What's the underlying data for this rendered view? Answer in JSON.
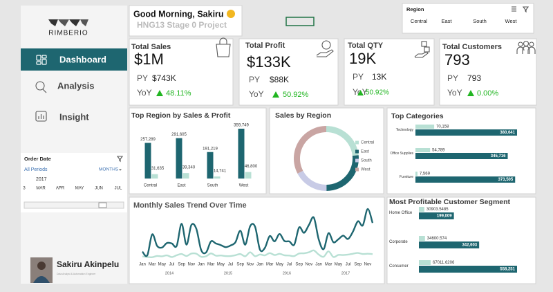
{
  "sidebar": {
    "logo": "RIMBERIO",
    "menu": [
      "Dashboard",
      "Analysis",
      "Insight"
    ],
    "order_date": {
      "title": "Order Date",
      "period": "All Periods",
      "level": "MONTHS",
      "year": "2017",
      "months": [
        "3",
        "MAR",
        "APR",
        "MAY",
        "JUN",
        "JUL"
      ]
    },
    "profile": {
      "name": "Sakiru Akinpelu",
      "role": "Data Analyst & Automation Engineer"
    }
  },
  "header": {
    "greeting": "Good Morning, Sakiru",
    "subtitle": "HNG13 Stage 0 Project"
  },
  "region_slicer": {
    "title": "Region",
    "items": [
      "Central",
      "East",
      "South",
      "West"
    ]
  },
  "kpis": [
    {
      "title": "Total Sales",
      "value": "$1M",
      "py_label": "PY",
      "py": "$743K",
      "yoy_label": "YoY",
      "yoy": "48.11%"
    },
    {
      "title": "Total Profit",
      "value": "$133K",
      "py_label": "PY",
      "py": "$88K",
      "yoy_label": "YoY",
      "yoy": "50.92%"
    },
    {
      "title": "Total QTY",
      "value": "19K",
      "py_label": "PY",
      "py": "13K",
      "yoy_label": "YoY",
      "yoy": "50.92%"
    },
    {
      "title": "Total Customers",
      "value": "793",
      "py_label": "PY",
      "py": "793",
      "yoy_label": "YoY",
      "yoy": "0.00%"
    }
  ],
  "chart_data": [
    {
      "type": "bar",
      "title": "Top Region by Sales & Profit",
      "categories": [
        "Central",
        "East",
        "South",
        "West"
      ],
      "series": [
        {
          "color": "#1e6670",
          "values": [
            257289,
            291605,
            191219,
            359749
          ],
          "value_labels": [
            "257,289",
            "291,605",
            "191,219",
            "359,749"
          ]
        },
        {
          "color": "#b8e0d4",
          "values": [
            31635,
            39340,
            14741,
            46800
          ],
          "value_labels": [
            "31,635",
            "39,340",
            "14,741",
            "46,800"
          ]
        }
      ]
    },
    {
      "type": "donut",
      "title": "Sales by Region",
      "categories": [
        "Central",
        "East",
        "South",
        "West"
      ],
      "values": [
        257289,
        291605,
        191219,
        359749
      ],
      "colors": [
        "#b8e0d4",
        "#1e6670",
        "#c8cbe6",
        "#c9a5a3"
      ]
    },
    {
      "type": "hbar",
      "title": "Top Categories",
      "categories": [
        "Technology",
        "Office Supplies",
        "Furniture"
      ],
      "series": [
        {
          "color": "#b8e0d4",
          "values": [
            70158,
            54789,
            7569
          ],
          "value_labels": [
            "70,158",
            "54,789",
            "7,569"
          ]
        },
        {
          "color": "#1e6670",
          "values": [
            380641,
            345716,
            373505
          ],
          "value_labels": [
            "380,641",
            "345,716",
            "373,505"
          ]
        }
      ]
    },
    {
      "type": "line",
      "title": "Monthly Sales Trend Over Time",
      "categories": [
        "Jan",
        null,
        "Mar",
        null,
        "May",
        null,
        "Jul",
        null,
        "Sep",
        null,
        "Nov",
        null,
        "Jan",
        null,
        "Mar",
        null,
        "May",
        null,
        "Jul",
        null,
        "Sep",
        null,
        "Nov",
        null,
        "Jan",
        null,
        "Mar",
        null,
        "May",
        null,
        "Jul",
        null,
        "Sep",
        null,
        "Nov",
        null,
        "Jan",
        null,
        "Mar",
        null,
        "May",
        null,
        "Jul",
        null,
        "Sep",
        null,
        "Nov",
        null
      ],
      "years": [
        "2014",
        "2015",
        "2016",
        "2017"
      ],
      "series": [
        {
          "color": "#1e6670",
          "values": [
            14000,
            5000,
            56000,
            28000,
            24000,
            35000,
            34000,
            28000,
            82000,
            31000,
            79000,
            70000,
            18000,
            12000,
            39000,
            34000,
            30000,
            25000,
            29000,
            37000,
            65000,
            31000,
            76000,
            75000,
            19000,
            23000,
            52000,
            39000,
            57000,
            40000,
            39000,
            31000,
            73000,
            60000,
            79000,
            97000,
            44000,
            20000,
            59000,
            37000,
            44000,
            53000,
            45000,
            63000,
            88000,
            78000,
            118000,
            84000
          ]
        },
        {
          "color": "#b8e0d4",
          "values": [
            2500,
            900,
            500,
            3500,
            2700,
            5000,
            900,
            5300,
            8300,
            3400,
            9300,
            9000,
            1500,
            2800,
            9700,
            4200,
            4700,
            3300,
            3300,
            5400,
            8200,
            2800,
            12500,
            3000,
            7100,
            5000,
            10500,
            5800,
            8700,
            5200,
            4500,
            3200,
            9600,
            10000,
            12500,
            17000,
            7000,
            1600,
            14800,
            1000,
            6000,
            5800,
            6800,
            9000,
            10800,
            8300,
            9000,
            8000
          ]
        }
      ]
    },
    {
      "type": "hbar",
      "title": "Most Profitable Customer Segment",
      "categories": [
        "Home Office",
        "Corporate",
        "Consumer"
      ],
      "series": [
        {
          "color": "#b8e0d4",
          "values": [
            30903.5485,
            34600.574,
            67011.6206
          ]
        },
        {
          "color": "#1e6670",
          "values": [
            199009,
            342603,
            558251
          ],
          "value_labels": [
            "199,009",
            "342,603",
            "558,251"
          ]
        }
      ]
    }
  ]
}
